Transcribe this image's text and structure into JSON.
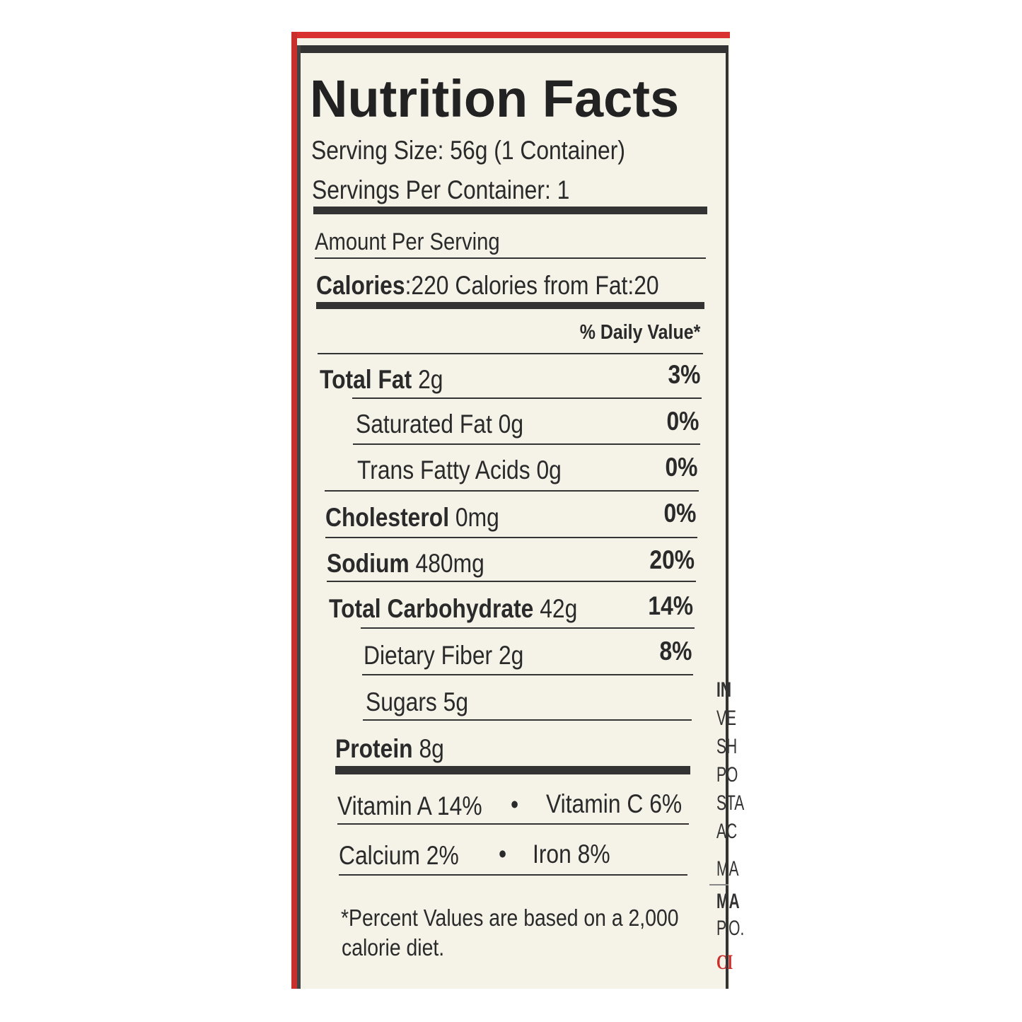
{
  "title": "Nutrition Facts",
  "serving_size": "Serving Size: 56g (1 Container)",
  "servings_per_container": "Servings Per Container: 1",
  "amount_per_serving": "Amount Per Serving",
  "calories": {
    "label": "Calories",
    "value": ":220 Calories from Fat:20"
  },
  "daily_value_header": "% Daily Value*",
  "nutrients": [
    {
      "name": "Total Fat",
      "amount": " 2g",
      "dv": "3%"
    },
    {
      "name": "Saturated Fat 0g",
      "amount": "",
      "dv": "0%"
    },
    {
      "name": "Trans Fatty Acids 0g",
      "amount": "",
      "dv": "0%"
    },
    {
      "name": "Cholesterol",
      "amount": " 0mg",
      "dv": "0%"
    },
    {
      "name": "Sodium",
      "amount": " 480mg",
      "dv": "20%"
    },
    {
      "name": "Total Carbohydrate",
      "amount": " 42g",
      "dv": "14%"
    },
    {
      "name": "Dietary Fiber 2g",
      "amount": "",
      "dv": "8%"
    },
    {
      "name": "Sugars 5g",
      "amount": "",
      "dv": ""
    },
    {
      "name": "Protein",
      "amount": " 8g",
      "dv": ""
    }
  ],
  "vitamins": [
    {
      "left": "Vitamin A 14%",
      "sep": "•",
      "right": "Vitamin C 6%"
    },
    {
      "left": "Calcium 2%",
      "sep": "•",
      "right": "Iron 8%"
    }
  ],
  "footnote": [
    "*Percent Values are based on a 2,000",
    "calorie diet."
  ],
  "side_text": [
    "IN",
    "VE",
    "SH",
    "PO",
    "STA",
    "AC",
    "MA",
    "MA",
    "P.O.",
    "CI"
  ],
  "colors": {
    "border_red": "#d8312f",
    "background": "#f5f2e8",
    "ink": "#2a2a2a"
  }
}
